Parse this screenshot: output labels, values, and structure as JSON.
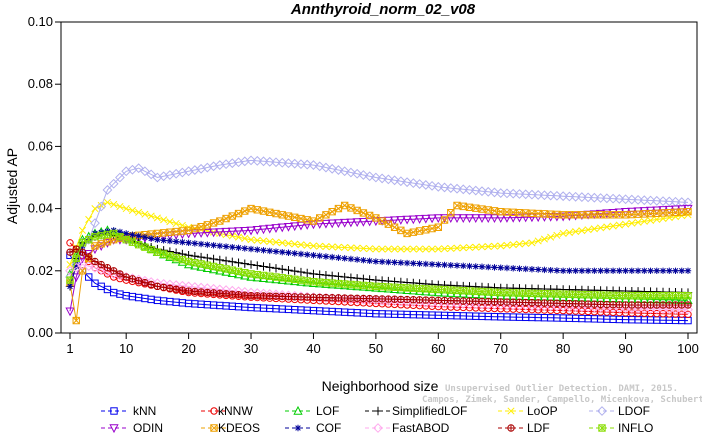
{
  "chart_data": {
    "type": "line",
    "title": "Annthyroid_norm_02_v08",
    "xlabel": "Neighborhood size",
    "ylabel": "Adjusted AP",
    "xlim": [
      1,
      100
    ],
    "ylim": [
      0,
      0.1
    ],
    "xticks": [
      {
        "value": 1,
        "label": "1"
      },
      {
        "value": 10,
        "label": "10"
      },
      {
        "value": 20,
        "label": "20"
      },
      {
        "value": 30,
        "label": "30"
      },
      {
        "value": 40,
        "label": "40"
      },
      {
        "value": 50,
        "label": "50"
      },
      {
        "value": 60,
        "label": "60"
      },
      {
        "value": 70,
        "label": "70"
      },
      {
        "value": 80,
        "label": "80"
      },
      {
        "value": 90,
        "label": "90"
      },
      {
        "value": 100,
        "label": "100"
      }
    ],
    "yticks": [
      {
        "value": 0,
        "label": "0.00"
      },
      {
        "value": 0.02,
        "label": "0.02"
      },
      {
        "value": 0.04,
        "label": "0.04"
      },
      {
        "value": 0.06,
        "label": "0.06"
      },
      {
        "value": 0.08,
        "label": "0.08"
      },
      {
        "value": 0.1,
        "label": "0.10"
      }
    ],
    "grid": false,
    "legend_position": "bottom",
    "series": [
      {
        "name": "kNN",
        "color": "#0000ee",
        "marker": "square",
        "points": [
          [
            1,
            0.025
          ],
          [
            2,
            0.022
          ],
          [
            3,
            0.02
          ],
          [
            4,
            0.018
          ],
          [
            5,
            0.016
          ],
          [
            6,
            0.015
          ],
          [
            8,
            0.013
          ],
          [
            10,
            0.012
          ],
          [
            15,
            0.0105
          ],
          [
            20,
            0.0095
          ],
          [
            30,
            0.0082
          ],
          [
            40,
            0.0072
          ],
          [
            50,
            0.0062
          ],
          [
            60,
            0.0057
          ],
          [
            70,
            0.0052
          ],
          [
            80,
            0.0048
          ],
          [
            90,
            0.0043
          ],
          [
            100,
            0.004
          ]
        ]
      },
      {
        "name": "kNNW",
        "color": "#ee0000",
        "marker": "circle",
        "points": [
          [
            1,
            0.029
          ],
          [
            2,
            0.027
          ],
          [
            3,
            0.025
          ],
          [
            4,
            0.023
          ],
          [
            5,
            0.021
          ],
          [
            6,
            0.02
          ],
          [
            8,
            0.018
          ],
          [
            10,
            0.017
          ],
          [
            15,
            0.015
          ],
          [
            20,
            0.013
          ],
          [
            30,
            0.0115
          ],
          [
            40,
            0.0105
          ],
          [
            50,
            0.0095
          ],
          [
            60,
            0.0085
          ],
          [
            70,
            0.0078
          ],
          [
            80,
            0.0072
          ],
          [
            90,
            0.0065
          ],
          [
            100,
            0.006
          ]
        ]
      },
      {
        "name": "LOF",
        "color": "#00cc00",
        "marker": "triangle-up",
        "points": [
          [
            1,
            0.019
          ],
          [
            2,
            0.025
          ],
          [
            3,
            0.03
          ],
          [
            5,
            0.032
          ],
          [
            7,
            0.033
          ],
          [
            10,
            0.031
          ],
          [
            15,
            0.026
          ],
          [
            20,
            0.022
          ],
          [
            30,
            0.018
          ],
          [
            40,
            0.016
          ],
          [
            50,
            0.0145
          ],
          [
            60,
            0.013
          ],
          [
            70,
            0.012
          ],
          [
            80,
            0.0115
          ],
          [
            90,
            0.011
          ],
          [
            100,
            0.0105
          ]
        ]
      },
      {
        "name": "SimplifiedLOF",
        "color": "#000000",
        "marker": "plus",
        "points": [
          [
            1,
            0.015
          ],
          [
            2,
            0.024
          ],
          [
            3,
            0.029
          ],
          [
            5,
            0.031
          ],
          [
            7,
            0.032
          ],
          [
            10,
            0.03
          ],
          [
            15,
            0.027
          ],
          [
            20,
            0.025
          ],
          [
            30,
            0.022
          ],
          [
            40,
            0.019
          ],
          [
            50,
            0.017
          ],
          [
            60,
            0.0155
          ],
          [
            70,
            0.0145
          ],
          [
            80,
            0.014
          ],
          [
            90,
            0.0135
          ],
          [
            100,
            0.013
          ]
        ]
      },
      {
        "name": "LoOP",
        "color": "#ffee00",
        "marker": "x",
        "points": [
          [
            1,
            0.022
          ],
          [
            3,
            0.033
          ],
          [
            5,
            0.04
          ],
          [
            7,
            0.042
          ],
          [
            10,
            0.04
          ],
          [
            15,
            0.037
          ],
          [
            20,
            0.034
          ],
          [
            30,
            0.03
          ],
          [
            40,
            0.028
          ],
          [
            50,
            0.027
          ],
          [
            60,
            0.027
          ],
          [
            70,
            0.028
          ],
          [
            75,
            0.029
          ],
          [
            80,
            0.032
          ],
          [
            90,
            0.035
          ],
          [
            100,
            0.038
          ]
        ]
      },
      {
        "name": "LDOF",
        "color": "#b0b0ee",
        "marker": "diamond",
        "points": [
          [
            1,
            0.018
          ],
          [
            4,
            0.03
          ],
          [
            7,
            0.046
          ],
          [
            10,
            0.052
          ],
          [
            12,
            0.053
          ],
          [
            15,
            0.05
          ],
          [
            20,
            0.052
          ],
          [
            25,
            0.054
          ],
          [
            30,
            0.0555
          ],
          [
            40,
            0.054
          ],
          [
            50,
            0.05
          ],
          [
            60,
            0.047
          ],
          [
            70,
            0.045
          ],
          [
            80,
            0.044
          ],
          [
            90,
            0.043
          ],
          [
            100,
            0.042
          ]
        ]
      },
      {
        "name": "ODIN",
        "color": "#9900cc",
        "marker": "triangle-down",
        "points": [
          [
            1,
            0.007
          ],
          [
            2,
            0.018
          ],
          [
            3,
            0.024
          ],
          [
            5,
            0.027
          ],
          [
            8,
            0.03
          ],
          [
            10,
            0.03
          ],
          [
            15,
            0.031
          ],
          [
            20,
            0.032
          ],
          [
            30,
            0.033
          ],
          [
            40,
            0.035
          ],
          [
            50,
            0.036
          ],
          [
            60,
            0.037
          ],
          [
            70,
            0.037
          ],
          [
            80,
            0.0375
          ],
          [
            90,
            0.039
          ],
          [
            100,
            0.04
          ]
        ]
      },
      {
        "name": "KDEOS",
        "color": "#eea000",
        "marker": "square-x",
        "points": [
          [
            1,
            0.016
          ],
          [
            2,
            0.004
          ],
          [
            3,
            0.02
          ],
          [
            5,
            0.028
          ],
          [
            8,
            0.03
          ],
          [
            10,
            0.031
          ],
          [
            15,
            0.032
          ],
          [
            20,
            0.033
          ],
          [
            25,
            0.036
          ],
          [
            30,
            0.04
          ],
          [
            35,
            0.038
          ],
          [
            40,
            0.036
          ],
          [
            45,
            0.041
          ],
          [
            50,
            0.037
          ],
          [
            55,
            0.032
          ],
          [
            60,
            0.034
          ],
          [
            63,
            0.041
          ],
          [
            70,
            0.039
          ],
          [
            80,
            0.038
          ],
          [
            90,
            0.038
          ],
          [
            100,
            0.039
          ]
        ]
      },
      {
        "name": "COF",
        "color": "#000099",
        "marker": "asterisk",
        "points": [
          [
            1,
            0.015
          ],
          [
            3,
            0.028
          ],
          [
            5,
            0.032
          ],
          [
            8,
            0.033
          ],
          [
            10,
            0.032
          ],
          [
            15,
            0.03
          ],
          [
            20,
            0.029
          ],
          [
            30,
            0.027
          ],
          [
            40,
            0.025
          ],
          [
            50,
            0.023
          ],
          [
            60,
            0.022
          ],
          [
            70,
            0.021
          ],
          [
            80,
            0.02
          ],
          [
            90,
            0.02
          ],
          [
            100,
            0.02
          ]
        ]
      },
      {
        "name": "FastABOD",
        "color": "#ffaaee",
        "marker": "diamond",
        "points": [
          [
            1,
            0.02
          ],
          [
            3,
            0.022
          ],
          [
            5,
            0.021
          ],
          [
            8,
            0.019
          ],
          [
            10,
            0.018
          ],
          [
            15,
            0.016
          ],
          [
            20,
            0.015
          ],
          [
            30,
            0.013
          ],
          [
            40,
            0.0115
          ],
          [
            50,
            0.0105
          ],
          [
            60,
            0.0095
          ],
          [
            70,
            0.009
          ],
          [
            80,
            0.0085
          ],
          [
            90,
            0.008
          ],
          [
            100,
            0.0075
          ]
        ]
      },
      {
        "name": "LDF",
        "color": "#aa0000",
        "marker": "circle-plus",
        "points": [
          [
            1,
            0.026
          ],
          [
            2,
            0.027
          ],
          [
            3,
            0.026
          ],
          [
            5,
            0.023
          ],
          [
            8,
            0.02
          ],
          [
            10,
            0.018
          ],
          [
            15,
            0.015
          ],
          [
            20,
            0.0135
          ],
          [
            30,
            0.012
          ],
          [
            40,
            0.0115
          ],
          [
            50,
            0.011
          ],
          [
            60,
            0.0105
          ],
          [
            70,
            0.01
          ],
          [
            80,
            0.0095
          ],
          [
            90,
            0.009
          ],
          [
            100,
            0.009
          ]
        ]
      },
      {
        "name": "INFLO",
        "color": "#88dd00",
        "marker": "star-box",
        "points": [
          [
            1,
            0.017
          ],
          [
            2,
            0.024
          ],
          [
            3,
            0.029
          ],
          [
            5,
            0.031
          ],
          [
            8,
            0.032
          ],
          [
            10,
            0.03
          ],
          [
            15,
            0.026
          ],
          [
            20,
            0.023
          ],
          [
            30,
            0.019
          ],
          [
            40,
            0.0165
          ],
          [
            50,
            0.015
          ],
          [
            60,
            0.014
          ],
          [
            70,
            0.013
          ],
          [
            80,
            0.0125
          ],
          [
            90,
            0.012
          ],
          [
            100,
            0.012
          ]
        ]
      }
    ]
  },
  "watermark": {
    "line1": "Unsupervised Outlier Detection. DAMI, 2015.",
    "line2": "Campos, Zimek, Sander, Campello, Micenkova, Schubert, Assent, Houle"
  }
}
